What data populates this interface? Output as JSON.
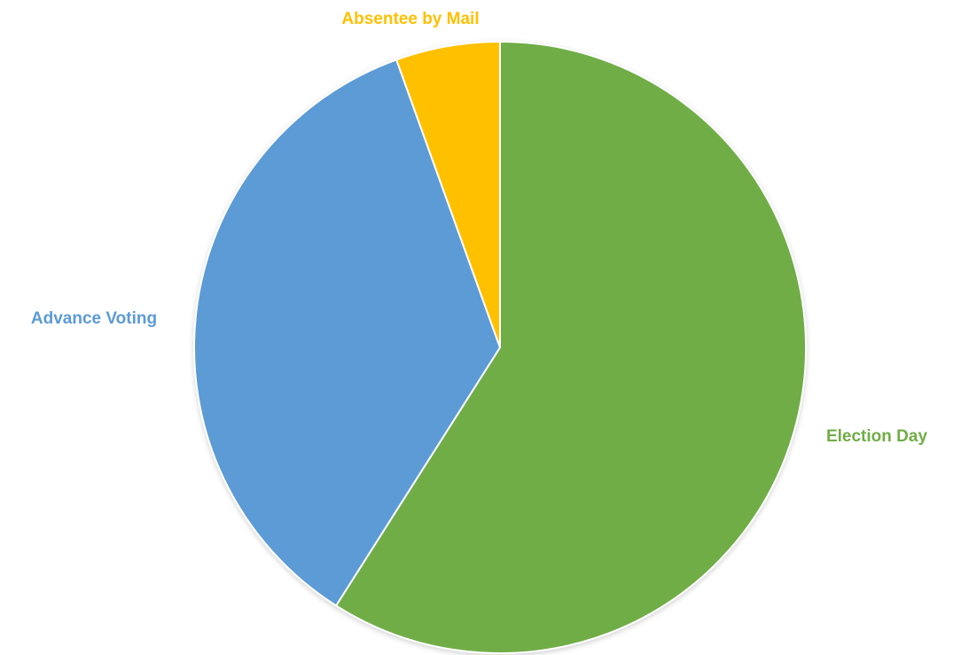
{
  "chart_data": {
    "type": "pie",
    "title": "",
    "start_angle_deg": 0,
    "direction": "clockwise",
    "slices": [
      {
        "label": "Election Day",
        "value": 59.0,
        "color": "#70AD47"
      },
      {
        "label": "Advance Voting",
        "value": 35.5,
        "color": "#5B9BD5"
      },
      {
        "label": "Absentee by Mail",
        "value": 5.5,
        "color": "#FFC000"
      }
    ],
    "legend": "none",
    "data_labels": "outside-category-name"
  }
}
